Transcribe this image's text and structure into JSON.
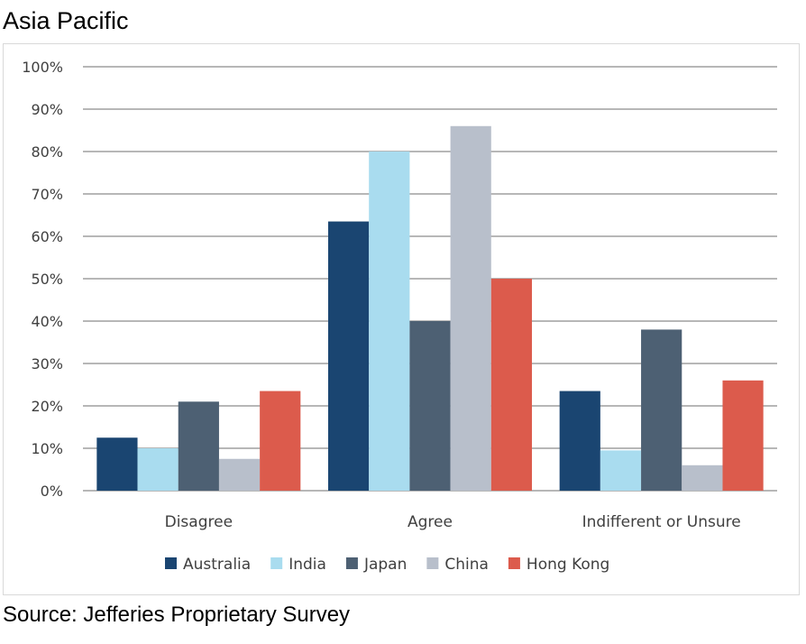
{
  "header": {
    "title": "Asia Pacific"
  },
  "footer": {
    "source": "Source: Jefferies Proprietary Survey"
  },
  "chart_data": {
    "type": "bar",
    "title": "",
    "xlabel": "",
    "ylabel": "",
    "categories": [
      "Disagree",
      "Agree",
      "Indifferent or Unsure"
    ],
    "ylim": [
      0,
      100
    ],
    "yticks": [
      "0%",
      "10%",
      "20%",
      "30%",
      "40%",
      "50%",
      "60%",
      "70%",
      "80%",
      "90%",
      "100%"
    ],
    "grid": true,
    "legend": "bottom",
    "series": [
      {
        "name": "Australia",
        "color": "#1a4571",
        "values": [
          12.5,
          63.5,
          23.5
        ]
      },
      {
        "name": "India",
        "color": "#a9dcef",
        "values": [
          10,
          80,
          9.5
        ]
      },
      {
        "name": "Japan",
        "color": "#4d6073",
        "values": [
          21,
          40,
          38
        ]
      },
      {
        "name": "China",
        "color": "#b8bfcb",
        "values": [
          7.5,
          86,
          6
        ]
      },
      {
        "name": "Hong Kong",
        "color": "#dc5b4c",
        "values": [
          23.5,
          50,
          26
        ]
      }
    ]
  }
}
